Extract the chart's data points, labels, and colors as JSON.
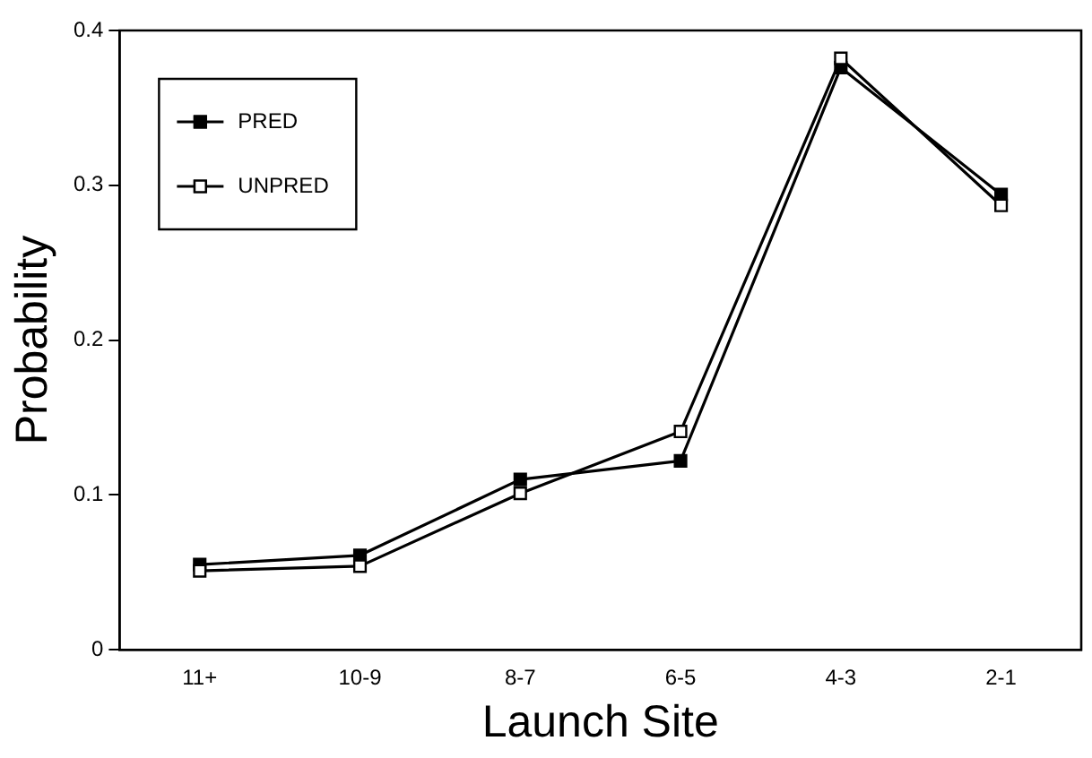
{
  "chart_data": {
    "type": "line",
    "xlabel": "Launch Site",
    "ylabel": "Probability",
    "categories": [
      "11+",
      "10-9",
      "8-7",
      "6-5",
      "4-3",
      "2-1"
    ],
    "series": [
      {
        "name": "PRED",
        "color": "#000000",
        "values": [
          0.055,
          0.061,
          0.11,
          0.122,
          0.376,
          0.294
        ]
      },
      {
        "name": "UNPRED",
        "color": "#000000",
        "values": [
          0.051,
          0.054,
          0.101,
          0.141,
          0.382,
          0.287
        ]
      }
    ],
    "ylim": [
      0,
      0.4
    ],
    "yticks": [
      0,
      0.1,
      0.2,
      0.3,
      0.4
    ],
    "grid": false,
    "legend": "top left",
    "marker": "square",
    "line_style": "solid"
  }
}
